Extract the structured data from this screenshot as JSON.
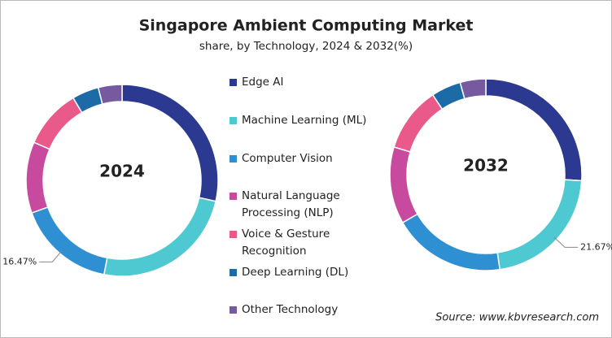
{
  "chart_data": {
    "type": "donut",
    "title": "Singapore Ambient Computing Market",
    "subtitle": "share, by Technology, 2024 & 2032(%)",
    "source": "Source: www.kbvresearch.com",
    "categories": [
      "Edge AI",
      "Machine Learning (ML)",
      "Computer Vision",
      "Natural Language Processing (NLP)",
      "Voice & Gesture Recognition",
      "Deep Learning (DL)",
      "Other Technology"
    ],
    "colors": [
      "#2b3990",
      "#4fc9d1",
      "#2e8fd2",
      "#c84a9f",
      "#e95a8b",
      "#1c6aa6",
      "#7759a0"
    ],
    "series": [
      {
        "name": "2024",
        "values": [
          28.5,
          24.5,
          16.47,
          12,
          10,
          4.5,
          4
        ],
        "value_labels": [
          null,
          null,
          "16.47%",
          null,
          null,
          null,
          null
        ]
      },
      {
        "name": "2032",
        "values": [
          26,
          21.67,
          19,
          13,
          11,
          5,
          4.33
        ],
        "value_labels": [
          null,
          "21.67%",
          null,
          null,
          null,
          null,
          null
        ]
      }
    ]
  }
}
